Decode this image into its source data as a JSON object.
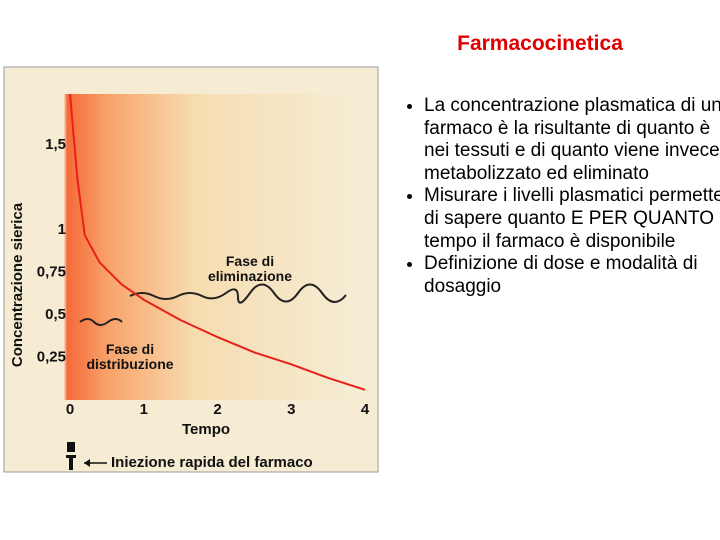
{
  "slide_title": "Farmacocinetica",
  "bullets": [
    "La concentrazione plasmatica di un farmaco è la risultante di quanto è nei tessuti e di quanto viene invece metabolizzato ed eliminato",
    "Misurare i livelli plasmatici permette di sapere quanto E PER QUANTO tempo il farmaco è disponibile",
    "Definizione di dose e modalità di dosaggio"
  ],
  "chart_data": {
    "type": "line",
    "x_label": "Tempo",
    "y_label": "Concentrazione sierica",
    "annotations": [
      "Fase di eliminazione",
      "Fase di distribuzione",
      "Iniezione rapida del farmaco"
    ],
    "xlim": [
      0,
      4
    ],
    "ylim": [
      0,
      1.8
    ],
    "xticks": [
      0,
      1,
      2,
      3,
      4
    ],
    "yticks": [
      {
        "value": 0.25,
        "label": "0,25"
      },
      {
        "value": 0.5,
        "label": "0,5"
      },
      {
        "value": 0.75,
        "label": "0,75"
      },
      1,
      {
        "value": 1.5,
        "label": "1,5"
      }
    ],
    "grid": false,
    "x": [
      0,
      0.05,
      0.1,
      0.2,
      0.4,
      0.7,
      1,
      1.5,
      2,
      2.5,
      3,
      3.5,
      4
    ],
    "series": [
      {
        "name": "Concentrazione",
        "color": "#e8201a",
        "values": [
          1.8,
          1.55,
          1.3,
          0.97,
          0.81,
          0.68,
          0.59,
          0.47,
          0.37,
          0.28,
          0.21,
          0.13,
          0.06
        ]
      }
    ]
  }
}
